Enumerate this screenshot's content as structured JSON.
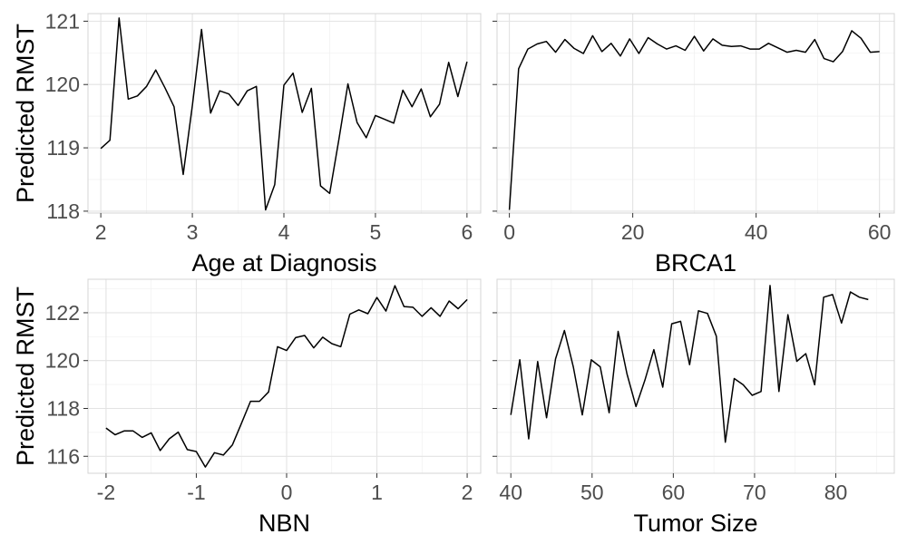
{
  "chart_data": [
    {
      "type": "line",
      "title": "",
      "xlabel": "Age at Diagnosis",
      "ylabel": "Predicted RMST",
      "xlim": [
        1.86,
        6.15
      ],
      "ylim": [
        117.97,
        121.12
      ],
      "xticks": [
        2,
        3,
        4,
        5,
        6
      ],
      "yticks": [
        118,
        119,
        120,
        121
      ],
      "show_xtick_labels": true,
      "show_ytick_labels": true,
      "grid": true,
      "color": "#000000",
      "x": [
        2.0,
        2.1,
        2.2,
        2.3,
        2.4,
        2.5,
        2.6,
        2.7,
        2.8,
        2.9,
        3.0,
        3.1,
        3.2,
        3.3,
        3.4,
        3.5,
        3.6,
        3.7,
        3.8,
        3.9,
        4.0,
        4.1,
        4.2,
        4.3,
        4.4,
        4.5,
        4.6,
        4.7,
        4.8,
        4.9,
        5.0,
        5.1,
        5.2,
        5.3,
        5.4,
        5.5,
        5.6,
        5.7,
        5.8,
        5.9,
        6.0
      ],
      "y": [
        118.99,
        119.12,
        121.05,
        119.77,
        119.82,
        119.97,
        120.23,
        119.95,
        119.65,
        118.58,
        119.67,
        120.87,
        119.55,
        119.9,
        119.85,
        119.67,
        119.9,
        119.97,
        118.02,
        118.42,
        119.99,
        120.18,
        119.56,
        119.94,
        118.4,
        118.28,
        119.13,
        120.01,
        119.4,
        119.16,
        119.51,
        119.45,
        119.39,
        119.91,
        119.65,
        119.93,
        119.49,
        119.69,
        120.35,
        119.81,
        120.36
      ]
    },
    {
      "type": "line",
      "title": "",
      "xlabel": "BRCA1",
      "ylabel": "",
      "xlim": [
        -2.0,
        62.4
      ],
      "ylim": [
        117.97,
        121.12
      ],
      "xticks": [
        0,
        20,
        40,
        60
      ],
      "yticks": [
        118,
        119,
        120,
        121
      ],
      "show_xtick_labels": true,
      "show_ytick_labels": false,
      "grid": true,
      "color": "#000000",
      "x": [
        0.0,
        1.5,
        3.0,
        4.5,
        6.0,
        7.5,
        9.0,
        10.5,
        12.0,
        13.5,
        15.0,
        16.5,
        18.0,
        19.5,
        21.0,
        22.5,
        24.0,
        25.5,
        27.0,
        28.5,
        30.0,
        31.5,
        33.0,
        34.5,
        36.0,
        37.5,
        39.0,
        40.5,
        42.0,
        43.5,
        45.0,
        46.5,
        48.0,
        49.5,
        51.0,
        52.5,
        54.0,
        55.5,
        57.0,
        58.5,
        60.0
      ],
      "y": [
        118.02,
        120.25,
        120.56,
        120.64,
        120.68,
        120.51,
        120.71,
        120.57,
        120.49,
        120.77,
        120.52,
        120.65,
        120.45,
        120.72,
        120.49,
        120.74,
        120.64,
        120.56,
        120.61,
        120.54,
        120.76,
        120.53,
        120.72,
        120.62,
        120.6,
        120.61,
        120.56,
        120.56,
        120.65,
        120.58,
        120.51,
        120.54,
        120.51,
        120.71,
        120.41,
        120.36,
        120.52,
        120.85,
        120.73,
        120.51,
        120.52
      ]
    },
    {
      "type": "line",
      "title": "",
      "xlabel": "NBN",
      "ylabel": "Predicted RMST",
      "xlim": [
        -2.2,
        2.15
      ],
      "ylim": [
        115.29,
        123.4
      ],
      "xticks": [
        -2,
        -1,
        0,
        1,
        2
      ],
      "yticks": [
        116,
        118,
        120,
        122
      ],
      "show_xtick_labels": true,
      "show_ytick_labels": true,
      "grid": true,
      "color": "#000000",
      "x": [
        -2.0,
        -1.9,
        -1.8,
        -1.7,
        -1.6,
        -1.5,
        -1.4,
        -1.3,
        -1.2,
        -1.1,
        -1.0,
        -0.9,
        -0.8,
        -0.7,
        -0.6,
        -0.5,
        -0.4,
        -0.3,
        -0.2,
        -0.1,
        0.0,
        0.1,
        0.2,
        0.3,
        0.4,
        0.5,
        0.6,
        0.7,
        0.8,
        0.9,
        1.0,
        1.1,
        1.2,
        1.3,
        1.4,
        1.5,
        1.6,
        1.7,
        1.8,
        1.9,
        2.0
      ],
      "y": [
        117.18,
        116.9,
        117.06,
        117.06,
        116.79,
        116.98,
        116.24,
        116.73,
        117.01,
        116.28,
        116.2,
        115.55,
        116.15,
        116.05,
        116.48,
        117.38,
        118.3,
        118.3,
        118.69,
        120.58,
        120.42,
        120.96,
        121.05,
        120.53,
        120.98,
        120.71,
        120.58,
        121.94,
        122.12,
        121.96,
        122.64,
        122.07,
        123.13,
        122.26,
        122.23,
        121.85,
        122.21,
        121.85,
        122.49,
        122.17,
        122.55
      ]
    },
    {
      "type": "line",
      "title": "",
      "xlabel": "Tumor Size",
      "ylabel": "",
      "xlim": [
        38.3,
        87.2
      ],
      "ylim": [
        115.29,
        123.4
      ],
      "xticks": [
        40,
        50,
        60,
        70,
        80
      ],
      "yticks": [
        116,
        118,
        120,
        122
      ],
      "show_xtick_labels": true,
      "show_ytick_labels": false,
      "grid": true,
      "color": "#000000",
      "x": [
        40.0,
        41.1,
        42.2,
        43.3,
        44.4,
        45.5,
        46.6,
        47.7,
        48.8,
        49.9,
        51.0,
        52.1,
        53.2,
        54.3,
        55.4,
        56.5,
        57.6,
        58.7,
        59.8,
        60.9,
        62.0,
        63.1,
        64.2,
        65.3,
        66.4,
        67.5,
        68.6,
        69.7,
        70.8,
        71.9,
        73.0,
        74.1,
        75.2,
        76.3,
        77.4,
        78.5,
        79.6,
        80.7,
        81.8,
        82.9,
        84.0
      ],
      "y": [
        117.73,
        120.04,
        116.73,
        119.96,
        117.61,
        120.07,
        121.26,
        119.72,
        117.73,
        120.03,
        119.74,
        117.82,
        121.22,
        119.44,
        118.08,
        119.18,
        120.46,
        118.89,
        121.54,
        121.64,
        119.83,
        122.08,
        121.97,
        121.02,
        116.59,
        119.25,
        118.99,
        118.55,
        118.71,
        123.14,
        118.71,
        121.92,
        119.97,
        120.29,
        118.99,
        122.65,
        122.76,
        121.57,
        122.87,
        122.65,
        122.55
      ]
    }
  ]
}
